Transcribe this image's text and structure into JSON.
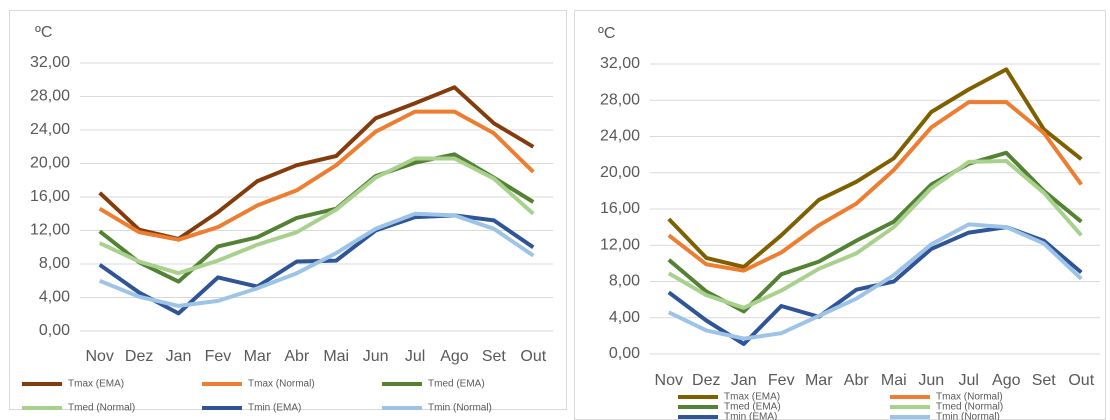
{
  "chart_data": [
    {
      "type": "line",
      "y_label": "ºC",
      "categories": [
        "Nov",
        "Dez",
        "Jan",
        "Fev",
        "Mar",
        "Abr",
        "Mai",
        "Jun",
        "Jul",
        "Ago",
        "Set",
        "Out"
      ],
      "ylim": [
        0,
        32
      ],
      "yticks": [
        {
          "value": 0,
          "label": "0,00"
        },
        {
          "value": 4,
          "label": "4,00"
        },
        {
          "value": 8,
          "label": "8,00"
        },
        {
          "value": 12,
          "label": "12,00"
        },
        {
          "value": 16,
          "label": "16,00"
        },
        {
          "value": 20,
          "label": "20,00"
        },
        {
          "value": 24,
          "label": "24,00"
        },
        {
          "value": 28,
          "label": "28,00"
        },
        {
          "value": 32,
          "label": "32,00"
        }
      ],
      "grid": true,
      "series": [
        {
          "name": "Tmax (EMA)",
          "color": "#843c0c",
          "values": [
            16.5,
            12.1,
            11.0,
            14.2,
            17.9,
            19.8,
            20.9,
            25.4,
            27.2,
            29.1,
            24.8,
            22.0
          ]
        },
        {
          "name": "Tmax (Normal)",
          "color": "#ed7d31",
          "values": [
            14.6,
            11.8,
            10.9,
            12.4,
            15.0,
            16.8,
            19.8,
            23.8,
            26.2,
            26.2,
            23.6,
            19.0
          ]
        },
        {
          "name": "Tmed (EMA)",
          "color": "#548235",
          "values": [
            11.9,
            8.2,
            5.9,
            10.1,
            11.2,
            13.5,
            14.6,
            18.5,
            20.1,
            21.1,
            18.3,
            15.4
          ]
        },
        {
          "name": "Tmed (Normal)",
          "color": "#a9d18e",
          "values": [
            10.5,
            8.3,
            6.9,
            8.4,
            10.3,
            11.8,
            14.5,
            18.3,
            20.6,
            20.6,
            18.2,
            14.0
          ]
        },
        {
          "name": "Tmin (EMA)",
          "color": "#2f5597",
          "values": [
            7.9,
            4.6,
            2.1,
            6.4,
            5.3,
            8.3,
            8.4,
            12.0,
            13.6,
            13.8,
            13.2,
            10.0
          ]
        },
        {
          "name": "Tmin (Normal)",
          "color": "#9dc3e6",
          "values": [
            6.0,
            4.1,
            3.0,
            3.6,
            5.1,
            6.9,
            9.3,
            12.2,
            14.0,
            13.8,
            12.2,
            9.0
          ]
        }
      ]
    },
    {
      "type": "line",
      "y_label": "ºC",
      "categories": [
        "Nov",
        "Dez",
        "Jan",
        "Fev",
        "Mar",
        "Abr",
        "Mai",
        "Jun",
        "Jul",
        "Ago",
        "Set",
        "Out"
      ],
      "ylim": [
        0,
        32
      ],
      "yticks": [
        {
          "value": 0,
          "label": "0,00"
        },
        {
          "value": 4,
          "label": "4,00"
        },
        {
          "value": 8,
          "label": "8,00"
        },
        {
          "value": 12,
          "label": "12,00"
        },
        {
          "value": 16,
          "label": "16,00"
        },
        {
          "value": 20,
          "label": "20,00"
        },
        {
          "value": 24,
          "label": "24,00"
        },
        {
          "value": 28,
          "label": "28,00"
        },
        {
          "value": 32,
          "label": "32,00"
        }
      ],
      "grid": true,
      "series": [
        {
          "name": "Tmax (EMA)",
          "color": "#7f6000",
          "values": [
            14.9,
            10.6,
            9.6,
            13.1,
            17.0,
            19.0,
            21.6,
            26.7,
            29.2,
            31.4,
            24.8,
            21.5
          ]
        },
        {
          "name": "Tmax (Normal)",
          "color": "#ed7d31",
          "values": [
            13.1,
            9.9,
            9.2,
            11.2,
            14.2,
            16.6,
            20.3,
            25.0,
            27.8,
            27.8,
            24.4,
            18.7
          ]
        },
        {
          "name": "Tmed (EMA)",
          "color": "#548235",
          "values": [
            10.4,
            6.9,
            4.7,
            8.8,
            10.2,
            12.5,
            14.6,
            18.7,
            21.0,
            22.2,
            18.0,
            14.6
          ]
        },
        {
          "name": "Tmed (Normal)",
          "color": "#a9d18e",
          "values": [
            8.9,
            6.5,
            5.1,
            7.0,
            9.4,
            11.1,
            14.0,
            18.3,
            21.2,
            21.3,
            17.8,
            13.1
          ]
        },
        {
          "name": "Tmin (EMA)",
          "color": "#2f5597",
          "values": [
            6.8,
            3.7,
            1.1,
            5.3,
            4.1,
            7.1,
            8.0,
            11.6,
            13.4,
            14.0,
            12.5,
            9.0
          ]
        },
        {
          "name": "Tmin (Normal)",
          "color": "#9dc3e6",
          "values": [
            4.6,
            2.6,
            1.7,
            2.3,
            4.2,
            6.1,
            8.7,
            12.1,
            14.3,
            14.0,
            12.2,
            8.3
          ]
        }
      ]
    }
  ]
}
